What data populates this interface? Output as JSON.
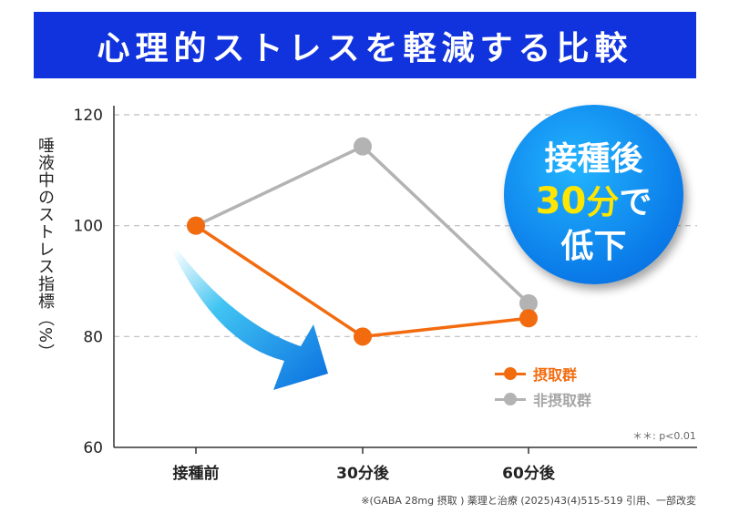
{
  "title": "心理的ストレスを軽減する比較",
  "chart_data": {
    "type": "line",
    "categories": [
      "接種前",
      "30分後",
      "60分後"
    ],
    "series": [
      {
        "name": "摂取群",
        "values": [
          100,
          80,
          83.3
        ],
        "color": "#f26b0f"
      },
      {
        "name": "非摂取群",
        "values": [
          100,
          114.3,
          86
        ],
        "color": "#b3b3b3"
      }
    ],
    "ylabel": "唾液中のストレス指標（%）",
    "ylim": [
      60,
      120
    ],
    "yticks": [
      60,
      80,
      100,
      120
    ],
    "ytick_labels": [
      "60",
      "80",
      "100",
      "120"
    ],
    "grid": true,
    "legend_position": "bottom-right",
    "annotation": "＊＊: p<0.01"
  },
  "callout": {
    "line1": "接種後",
    "line2_num": "30",
    "line2_unit": "分",
    "line2_rest": "で",
    "line3": "低下"
  },
  "footnote": "※(GABA 28mg 摂取 ) 薬理と治療 (2025)43(4)515-519 引用、一部改変",
  "colors": {
    "banner": "#1133dd",
    "accent_yellow": "#ffe600",
    "callout_blue": "#0a7ae8"
  }
}
